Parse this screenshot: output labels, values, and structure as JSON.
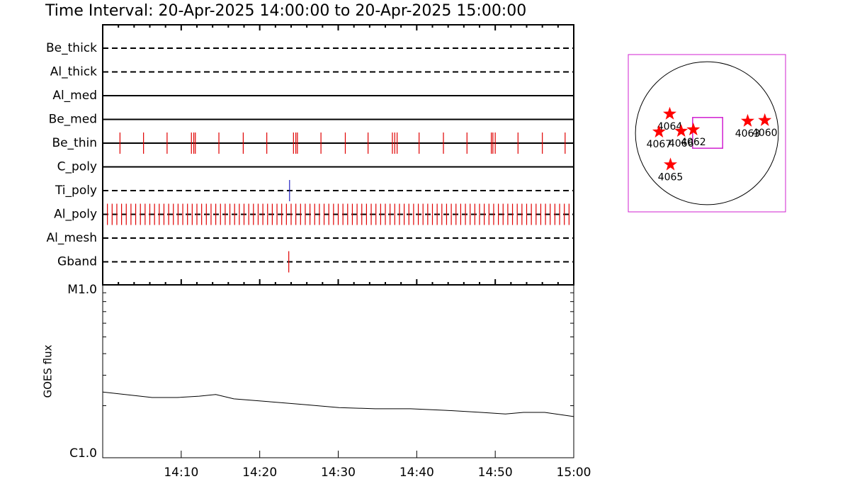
{
  "chart_data": [
    {
      "type": "timeline",
      "title": "Time Interval: 20-Apr-2025 14:00:00 to 20-Apr-2025 15:00:00",
      "xlim": [
        0,
        60
      ],
      "rows": [
        {
          "name": "Be_thick",
          "style": "dashed",
          "color": "#e00000",
          "events": []
        },
        {
          "name": "Al_thick",
          "style": "dashed",
          "color": "#e00000",
          "events": []
        },
        {
          "name": "Al_med",
          "style": "solid",
          "color": "#e00000",
          "events": []
        },
        {
          "name": "Be_med",
          "style": "solid",
          "color": "#e00000",
          "events": []
        },
        {
          "name": "Be_thin",
          "style": "solid",
          "color": "#e00000",
          "events": [
            2.2,
            5.2,
            8.2,
            11.3,
            11.6,
            11.8,
            14.8,
            17.9,
            20.9,
            24.3,
            24.6,
            24.8,
            27.8,
            30.9,
            33.8,
            36.9,
            37.2,
            37.5,
            40.3,
            43.4,
            46.4,
            49.5,
            49.7,
            50,
            52.9,
            56,
            58.9
          ]
        },
        {
          "name": "C_poly",
          "style": "solid",
          "color": "#e00000",
          "events": []
        },
        {
          "name": "Ti_poly",
          "style": "dashed",
          "color": "#2020c0",
          "events": [
            23.8
          ]
        },
        {
          "name": "Al_poly",
          "style": "dashed",
          "color": "#e00000",
          "events": [
            0,
            0.6,
            1.2,
            1.8,
            2.4,
            3,
            3.6,
            4.2,
            4.8,
            5.4,
            6,
            6.6,
            7.2,
            7.8,
            8.4,
            9,
            9.6,
            10.2,
            10.8,
            11.4,
            12,
            12.6,
            13.2,
            13.8,
            14.4,
            15,
            15.6,
            16.2,
            16.8,
            17.4,
            18,
            18.6,
            19.2,
            19.8,
            20.4,
            21,
            21.6,
            22.2,
            22.8,
            23.4,
            24,
            24.6,
            25.2,
            25.8,
            26.4,
            27,
            27.6,
            28.2,
            28.8,
            29.4,
            30,
            30.6,
            31.2,
            31.8,
            32.4,
            33,
            33.6,
            34.2,
            34.8,
            35.4,
            36,
            36.6,
            37.2,
            37.8,
            38.4,
            39,
            39.6,
            40.2,
            40.8,
            41.4,
            42,
            42.6,
            43.2,
            43.8,
            44.4,
            45,
            45.6,
            46.2,
            46.8,
            47.4,
            48,
            48.6,
            49.2,
            49.8,
            50.4,
            51,
            51.6,
            52.2,
            52.8,
            53.4,
            54,
            54.6,
            55.2,
            55.8,
            56.4,
            57,
            57.6,
            58.2,
            58.8,
            59.4,
            60
          ]
        },
        {
          "name": "Al_mesh",
          "style": "dashed",
          "color": "#e00000",
          "events": []
        },
        {
          "name": "Gband",
          "style": "dashed",
          "color": "#e00000",
          "events": [
            23.7
          ]
        }
      ]
    },
    {
      "type": "line",
      "y_label": "GOES flux",
      "log_scale": true,
      "color": "#000000",
      "xlim": [
        0,
        60
      ],
      "xticks": [
        {
          "value": 10,
          "label": "14:10"
        },
        {
          "value": 20,
          "label": "14:20"
        },
        {
          "value": 30,
          "label": "14:30"
        },
        {
          "value": 40,
          "label": "14:40"
        },
        {
          "value": 50,
          "label": "14:50"
        },
        {
          "value": 60,
          "label": "15:00"
        }
      ],
      "ylim": [
        1e-06,
        1e-05
      ],
      "yticks": [
        {
          "value": 1e-06,
          "label": "C1.0"
        },
        {
          "value": 1e-05,
          "label": "M1.0"
        }
      ],
      "x": [
        0,
        6.3,
        9.5,
        12.3,
        14.4,
        16.7,
        21.2,
        25.7,
        30.1,
        34.7,
        39.2,
        43.7,
        48.2,
        51.3,
        53.6,
        56.3,
        60
      ],
      "values": [
        2.4e-06,
        2.23e-06,
        2.23e-06,
        2.27e-06,
        2.32e-06,
        2.19e-06,
        2.11e-06,
        2.03e-06,
        1.95e-06,
        1.92e-06,
        1.92e-06,
        1.88e-06,
        1.83e-06,
        1.79e-06,
        1.83e-06,
        1.83e-06,
        1.73e-06
      ]
    },
    {
      "type": "map",
      "xlim": [
        -1.1,
        1.1
      ],
      "ylim": [
        -1.1,
        1.1
      ],
      "color": "#ff0000",
      "frame_color": "#d020d0",
      "fov": [
        -0.2,
        0.22,
        0.22,
        -0.21
      ],
      "regions": [
        {
          "label": "4064",
          "x": -0.52,
          "y": 0.27
        },
        {
          "label": "4067",
          "x": -0.67,
          "y": 0.02
        },
        {
          "label": "4066",
          "x": -0.36,
          "y": 0.03
        },
        {
          "label": "4062",
          "x": -0.19,
          "y": 0.05
        },
        {
          "label": "4063",
          "x": 0.57,
          "y": 0.17
        },
        {
          "label": "4060",
          "x": 0.81,
          "y": 0.18
        },
        {
          "label": "4065",
          "x": -0.51,
          "y": -0.44
        }
      ]
    }
  ]
}
